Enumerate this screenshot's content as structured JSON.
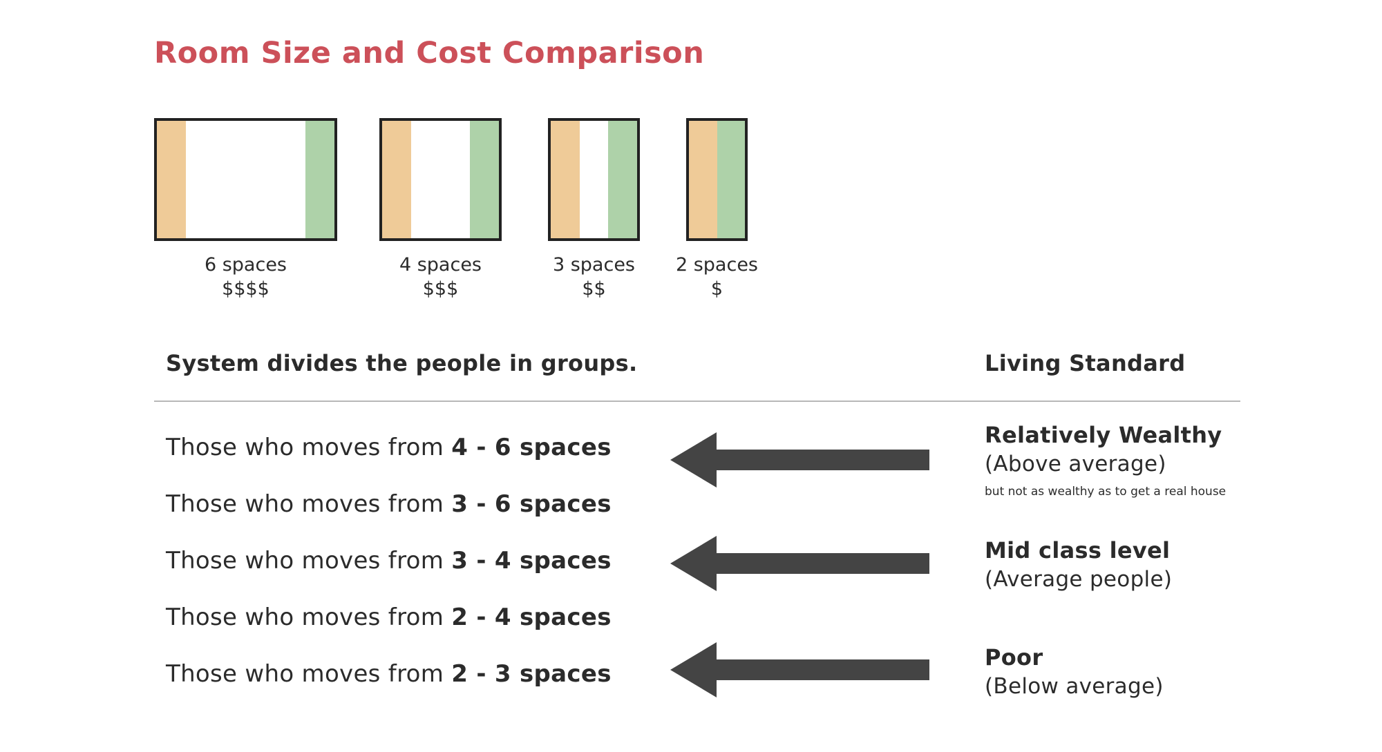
{
  "title": "Room Size and Cost Comparison",
  "colors": {
    "title": "#cc5059",
    "orange_band": "#efcb98",
    "green_band": "#aed2a9",
    "arrow": "#444444",
    "box_border": "#222222",
    "divider": "#b7b7b7"
  },
  "rooms": [
    {
      "spaces": "6 spaces",
      "cost": "$$$$"
    },
    {
      "spaces": "4 spaces",
      "cost": "$$$"
    },
    {
      "spaces": "3 spaces",
      "cost": "$$"
    },
    {
      "spaces": "2 spaces",
      "cost": "$"
    }
  ],
  "groups_heading": "System divides the people in groups.",
  "standard_heading": "Living Standard",
  "groups": [
    {
      "prefix": "Those who moves from ",
      "range": "4 - 6 spaces"
    },
    {
      "prefix": "Those who moves from ",
      "range": "3 - 6 spaces"
    },
    {
      "prefix": "Those who moves from ",
      "range": "3 - 4 spaces"
    },
    {
      "prefix": "Those who moves from ",
      "range": "2 - 4 spaces"
    },
    {
      "prefix": "Those who moves from ",
      "range": "2 - 3 spaces"
    }
  ],
  "arrow_icon": "left-arrow-icon",
  "standards": [
    {
      "label": "Relatively Wealthy",
      "sub": "(Above average)",
      "note": "but not as wealthy as to get a real house"
    },
    {
      "label": "Mid class level",
      "sub": "(Average people)"
    },
    {
      "label": "Poor",
      "sub": "(Below average)"
    }
  ]
}
